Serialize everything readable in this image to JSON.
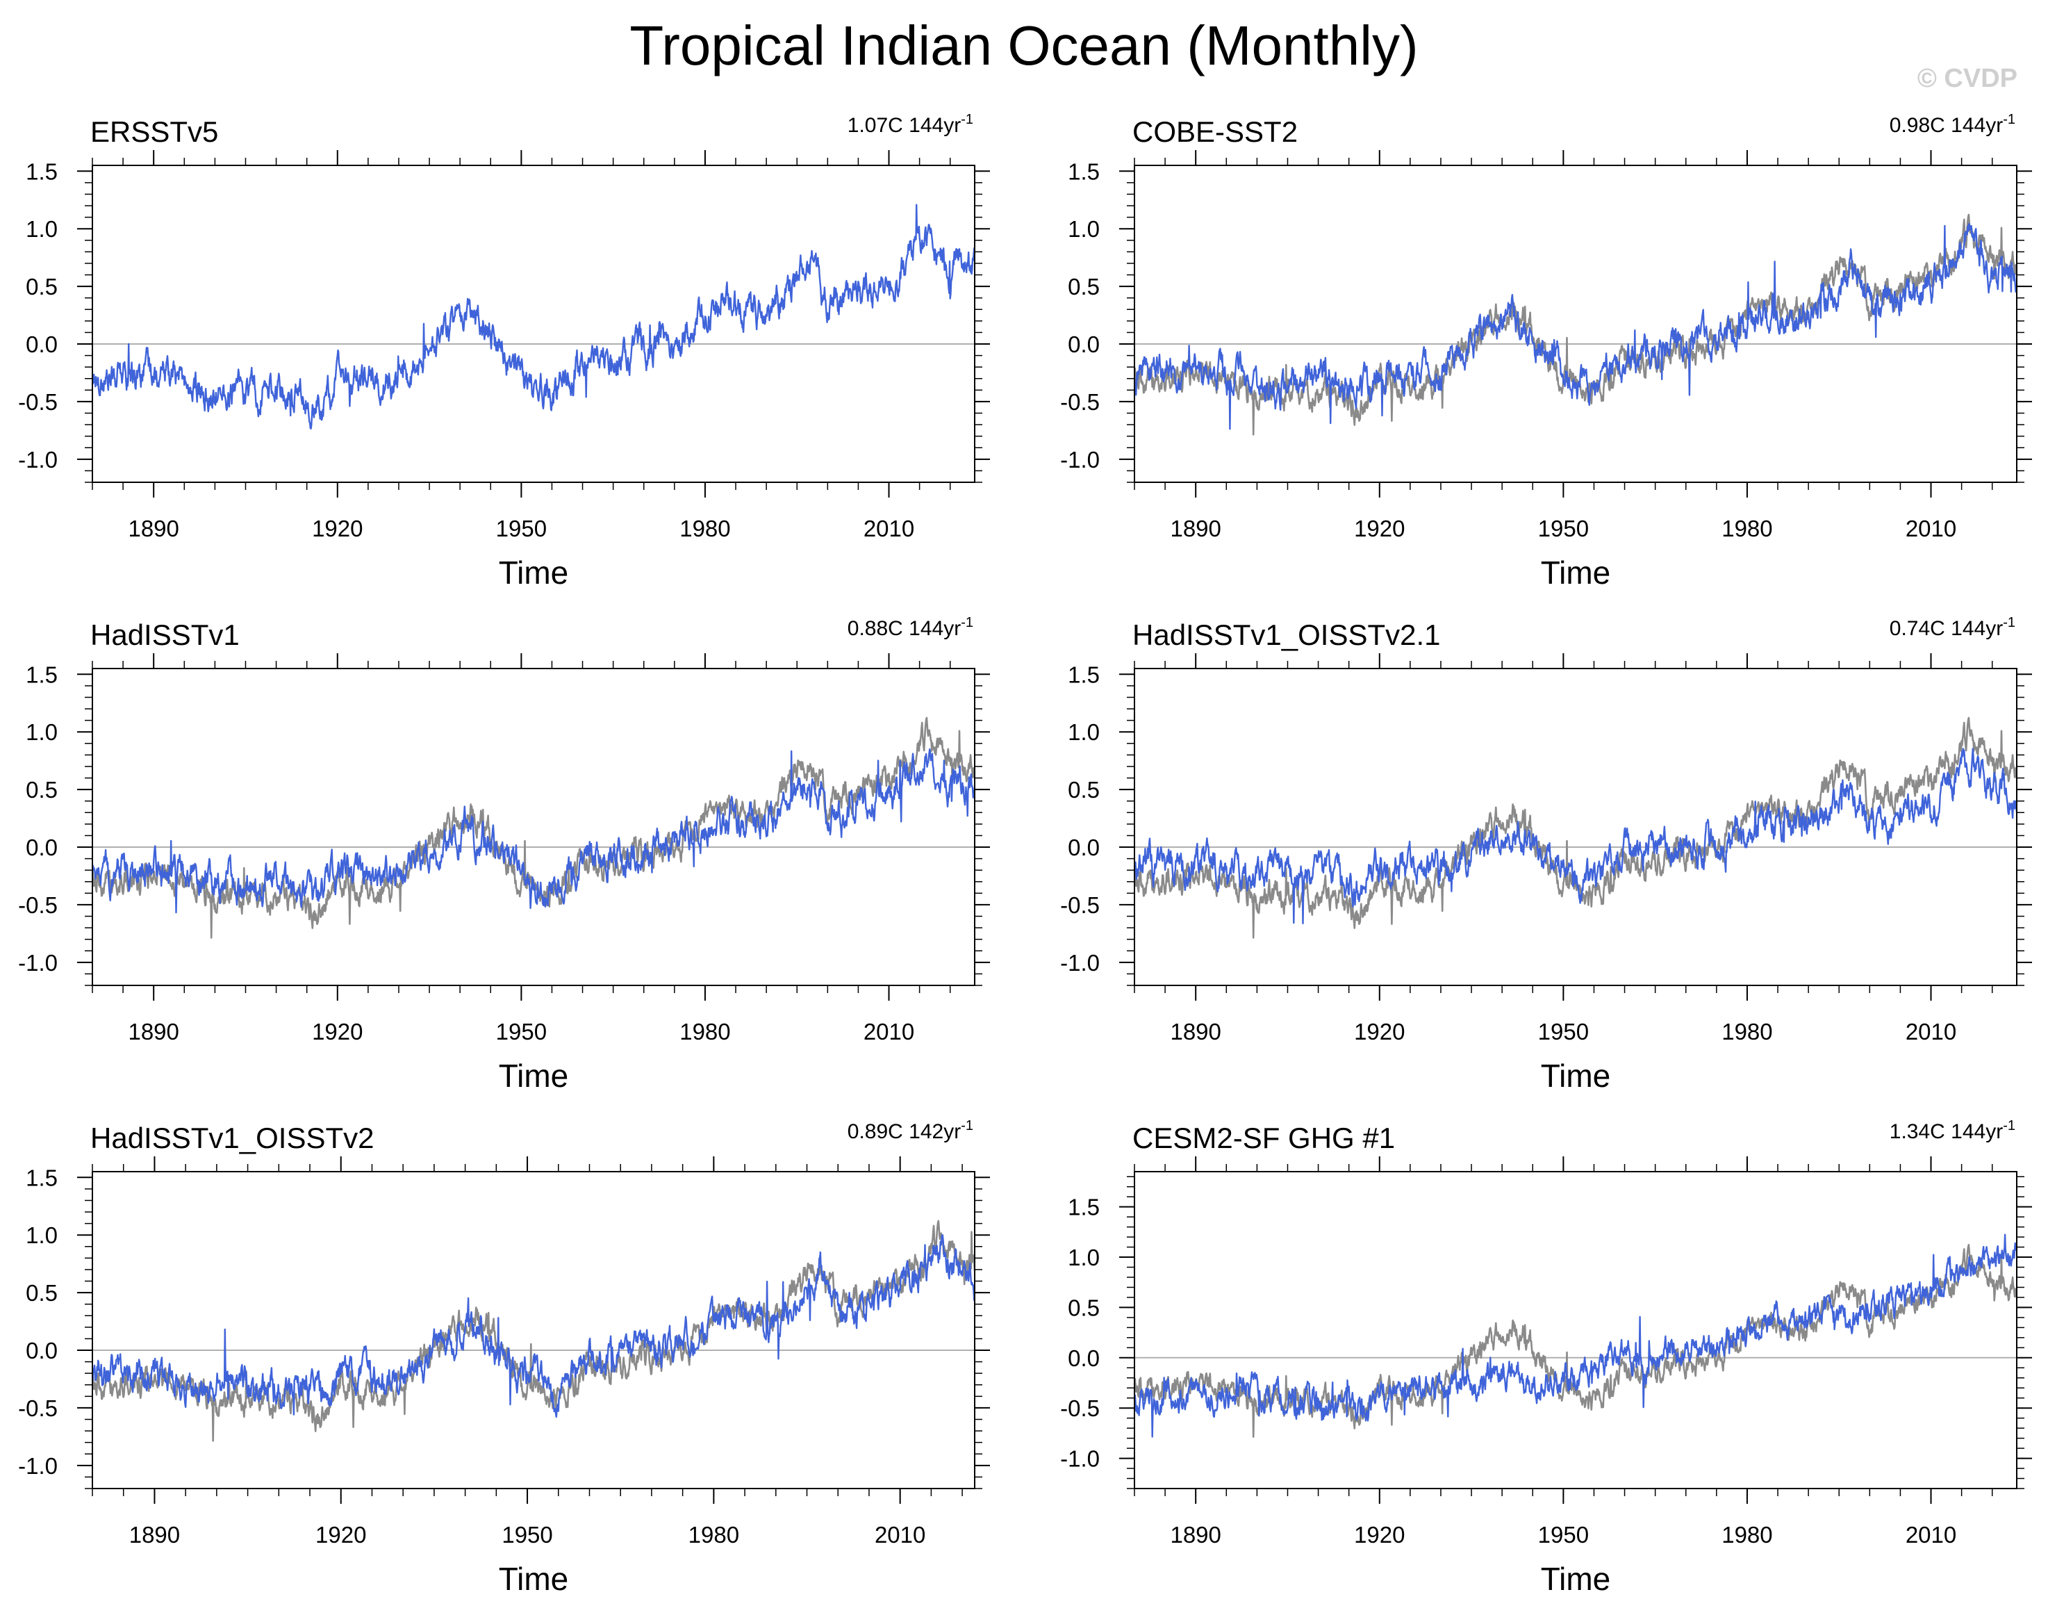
{
  "figure": {
    "title": "Tropical Indian Ocean (Monthly)",
    "copyright": "© CVDP",
    "colors": {
      "observed": "#3f63d9",
      "reference": "#8a8a8a",
      "zero_line": "#b0b0b0",
      "axis": "#000000"
    }
  },
  "chart_data": [
    {
      "type": "line",
      "title": "ERSSTv5",
      "trend_label": "1.07C 144yr",
      "trend_exponent": "-1",
      "xlabel": "Time",
      "ylabel": "",
      "xlim": [
        1880,
        2024
      ],
      "ylim": [
        -1.2,
        1.55
      ],
      "x_ticks": [
        1890,
        1920,
        1950,
        1980,
        2010
      ],
      "y_ticks": [
        -1.0,
        -0.5,
        0.0,
        0.5,
        1.0,
        1.5
      ],
      "y_tick_labels": [
        "-1.0",
        "-0.5",
        "0.0",
        "0.5",
        "1.0",
        "1.5"
      ],
      "series": [
        {
          "name": "ERSSTv5",
          "color": "#3f63d9",
          "x": [
            1880,
            1890,
            1900,
            1910,
            1917,
            1920,
            1930,
            1941,
            1945,
            1950,
            1955,
            1960,
            1970,
            1977,
            1983,
            1990,
            1997,
            2000,
            2010,
            2016,
            2020,
            2024
          ],
          "values": [
            -0.3,
            -0.25,
            -0.45,
            -0.4,
            -0.55,
            -0.3,
            -0.35,
            0.35,
            0.1,
            -0.3,
            -0.45,
            -0.15,
            -0.05,
            0.1,
            0.4,
            0.25,
            0.75,
            0.35,
            0.55,
            0.95,
            0.65,
            0.7
          ]
        }
      ]
    },
    {
      "type": "line",
      "title": "COBE-SST2",
      "trend_label": "0.98C 144yr",
      "trend_exponent": "-1",
      "xlabel": "Time",
      "ylabel": "",
      "xlim": [
        1880,
        2024
      ],
      "ylim": [
        -1.2,
        1.55
      ],
      "x_ticks": [
        1890,
        1920,
        1950,
        1980,
        2010
      ],
      "y_ticks": [
        -1.0,
        -0.5,
        0.0,
        0.5,
        1.0,
        1.5
      ],
      "y_tick_labels": [
        "-1.0",
        "-0.5",
        "0.0",
        "0.5",
        "1.0",
        "1.5"
      ],
      "series": [
        {
          "name": "ERSSTv5",
          "color": "#8a8a8a",
          "x": [
            1880,
            1890,
            1900,
            1910,
            1917,
            1920,
            1930,
            1941,
            1945,
            1950,
            1955,
            1960,
            1970,
            1977,
            1983,
            1990,
            1997,
            2000,
            2010,
            2016,
            2020,
            2024
          ],
          "values": [
            -0.3,
            -0.25,
            -0.45,
            -0.4,
            -0.55,
            -0.3,
            -0.35,
            0.35,
            0.1,
            -0.3,
            -0.45,
            -0.15,
            -0.05,
            0.1,
            0.4,
            0.25,
            0.75,
            0.35,
            0.55,
            0.95,
            0.65,
            0.7
          ]
        },
        {
          "name": "COBE-SST2",
          "color": "#3f63d9",
          "x": [
            1880,
            1890,
            1900,
            1910,
            1917,
            1920,
            1930,
            1941,
            1945,
            1950,
            1955,
            1960,
            1970,
            1977,
            1983,
            1990,
            1997,
            2000,
            2010,
            2016,
            2020,
            2024
          ],
          "values": [
            -0.25,
            -0.2,
            -0.35,
            -0.3,
            -0.4,
            -0.2,
            -0.25,
            0.3,
            0.05,
            -0.25,
            -0.35,
            -0.1,
            0.0,
            0.05,
            0.3,
            0.2,
            0.65,
            0.3,
            0.5,
            0.9,
            0.6,
            0.65
          ]
        }
      ]
    },
    {
      "type": "line",
      "title": "HadISSTv1",
      "trend_label": "0.88C 144yr",
      "trend_exponent": "-1",
      "xlabel": "Time",
      "ylabel": "",
      "xlim": [
        1880,
        2024
      ],
      "ylim": [
        -1.2,
        1.55
      ],
      "x_ticks": [
        1890,
        1920,
        1950,
        1980,
        2010
      ],
      "y_ticks": [
        -1.0,
        -0.5,
        0.0,
        0.5,
        1.0,
        1.5
      ],
      "y_tick_labels": [
        "-1.0",
        "-0.5",
        "0.0",
        "0.5",
        "1.0",
        "1.5"
      ],
      "series": [
        {
          "name": "ERSSTv5",
          "color": "#8a8a8a",
          "x": [
            1880,
            1890,
            1900,
            1910,
            1917,
            1920,
            1930,
            1941,
            1945,
            1950,
            1955,
            1960,
            1970,
            1977,
            1983,
            1990,
            1997,
            2000,
            2010,
            2016,
            2020,
            2024
          ],
          "values": [
            -0.3,
            -0.25,
            -0.45,
            -0.4,
            -0.55,
            -0.3,
            -0.35,
            0.35,
            0.1,
            -0.3,
            -0.45,
            -0.15,
            -0.05,
            0.1,
            0.4,
            0.25,
            0.75,
            0.35,
            0.55,
            0.95,
            0.65,
            0.7
          ]
        },
        {
          "name": "HadISSTv1",
          "color": "#3f63d9",
          "x": [
            1880,
            1890,
            1900,
            1910,
            1917,
            1920,
            1930,
            1941,
            1945,
            1950,
            1955,
            1960,
            1970,
            1977,
            1983,
            1990,
            1997,
            2000,
            2010,
            2016,
            2020,
            2024
          ],
          "values": [
            -0.2,
            -0.2,
            -0.3,
            -0.3,
            -0.4,
            -0.2,
            -0.25,
            0.2,
            0.0,
            -0.2,
            -0.35,
            -0.1,
            0.0,
            0.1,
            0.25,
            0.2,
            0.65,
            0.3,
            0.45,
            0.75,
            0.55,
            0.45
          ]
        }
      ]
    },
    {
      "type": "line",
      "title": "HadISSTv1_OISSTv2.1",
      "trend_label": "0.74C 144yr",
      "trend_exponent": "-1",
      "xlabel": "Time",
      "ylabel": "",
      "xlim": [
        1880,
        2024
      ],
      "ylim": [
        -1.2,
        1.55
      ],
      "x_ticks": [
        1890,
        1920,
        1950,
        1980,
        2010
      ],
      "y_ticks": [
        -1.0,
        -0.5,
        0.0,
        0.5,
        1.0,
        1.5
      ],
      "y_tick_labels": [
        "-1.0",
        "-0.5",
        "0.0",
        "0.5",
        "1.0",
        "1.5"
      ],
      "series": [
        {
          "name": "ERSSTv5",
          "color": "#8a8a8a",
          "x": [
            1880,
            1890,
            1900,
            1910,
            1917,
            1920,
            1930,
            1941,
            1945,
            1950,
            1955,
            1960,
            1970,
            1977,
            1983,
            1990,
            1997,
            2000,
            2010,
            2016,
            2020,
            2024
          ],
          "values": [
            -0.3,
            -0.25,
            -0.45,
            -0.4,
            -0.55,
            -0.3,
            -0.35,
            0.35,
            0.1,
            -0.3,
            -0.45,
            -0.15,
            -0.05,
            0.1,
            0.4,
            0.25,
            0.75,
            0.35,
            0.55,
            0.95,
            0.65,
            0.7
          ]
        },
        {
          "name": "HadISSTv1_OISSTv2.1",
          "color": "#3f63d9",
          "x": [
            1880,
            1890,
            1900,
            1910,
            1917,
            1920,
            1930,
            1941,
            1945,
            1950,
            1955,
            1960,
            1970,
            1977,
            1983,
            1990,
            1997,
            2000,
            2010,
            2016,
            2020,
            2024
          ],
          "values": [
            -0.15,
            -0.15,
            -0.25,
            -0.25,
            -0.35,
            -0.15,
            -0.2,
            0.15,
            0.0,
            -0.15,
            -0.3,
            -0.05,
            0.05,
            0.05,
            0.2,
            0.15,
            0.5,
            0.2,
            0.35,
            0.75,
            0.5,
            0.45
          ]
        }
      ]
    },
    {
      "type": "line",
      "title": "HadISSTv1_OISSTv2",
      "trend_label": "0.89C 142yr",
      "trend_exponent": "-1",
      "xlabel": "Time",
      "ylabel": "",
      "xlim": [
        1880,
        2022
      ],
      "ylim": [
        -1.2,
        1.55
      ],
      "x_ticks": [
        1890,
        1920,
        1950,
        1980,
        2010
      ],
      "y_ticks": [
        -1.0,
        -0.5,
        0.0,
        0.5,
        1.0,
        1.5
      ],
      "y_tick_labels": [
        "-1.0",
        "-0.5",
        "0.0",
        "0.5",
        "1.0",
        "1.5"
      ],
      "series": [
        {
          "name": "ERSSTv5",
          "color": "#8a8a8a",
          "x": [
            1880,
            1890,
            1900,
            1910,
            1917,
            1920,
            1930,
            1941,
            1945,
            1950,
            1955,
            1960,
            1970,
            1977,
            1983,
            1990,
            1997,
            2000,
            2010,
            2016,
            2020,
            2022
          ],
          "values": [
            -0.3,
            -0.25,
            -0.45,
            -0.4,
            -0.55,
            -0.3,
            -0.35,
            0.35,
            0.1,
            -0.3,
            -0.45,
            -0.15,
            -0.05,
            0.1,
            0.4,
            0.25,
            0.75,
            0.35,
            0.55,
            0.95,
            0.65,
            0.7
          ]
        },
        {
          "name": "HadISSTv1_OISSTv2",
          "color": "#3f63d9",
          "x": [
            1880,
            1890,
            1900,
            1910,
            1917,
            1920,
            1930,
            1941,
            1945,
            1950,
            1955,
            1960,
            1970,
            1977,
            1983,
            1990,
            1997,
            2000,
            2010,
            2016,
            2020,
            2022
          ],
          "values": [
            -0.2,
            -0.2,
            -0.3,
            -0.3,
            -0.4,
            -0.2,
            -0.25,
            0.25,
            0.0,
            -0.2,
            -0.35,
            -0.1,
            0.0,
            0.1,
            0.3,
            0.2,
            0.7,
            0.3,
            0.5,
            0.9,
            0.6,
            0.55
          ]
        }
      ]
    },
    {
      "type": "line",
      "title": "CESM2-SF GHG #1",
      "trend_label": "1.34C 144yr",
      "trend_exponent": "-1",
      "xlabel": "Time",
      "ylabel": "",
      "xlim": [
        1880,
        2024
      ],
      "ylim": [
        -1.3,
        1.85
      ],
      "x_ticks": [
        1890,
        1920,
        1950,
        1980,
        2010
      ],
      "y_ticks": [
        -1.0,
        -0.5,
        0.0,
        0.5,
        1.0,
        1.5
      ],
      "y_tick_labels": [
        "-1.0",
        "-0.5",
        "0.0",
        "0.5",
        "1.0",
        "1.5"
      ],
      "series": [
        {
          "name": "ERSSTv5",
          "color": "#8a8a8a",
          "x": [
            1880,
            1890,
            1900,
            1910,
            1917,
            1920,
            1930,
            1941,
            1945,
            1950,
            1955,
            1960,
            1970,
            1977,
            1983,
            1990,
            1997,
            2000,
            2010,
            2016,
            2020,
            2024
          ],
          "values": [
            -0.3,
            -0.25,
            -0.45,
            -0.4,
            -0.55,
            -0.3,
            -0.35,
            0.35,
            0.1,
            -0.3,
            -0.45,
            -0.15,
            -0.05,
            0.1,
            0.4,
            0.25,
            0.75,
            0.35,
            0.55,
            0.95,
            0.65,
            0.7
          ]
        },
        {
          "name": "CESM2-SF GHG #1",
          "color": "#3f63d9",
          "x": [
            1880,
            1890,
            1900,
            1910,
            1917,
            1920,
            1930,
            1941,
            1945,
            1950,
            1955,
            1960,
            1970,
            1977,
            1983,
            1990,
            1997,
            2000,
            2010,
            2016,
            2020,
            2024
          ],
          "values": [
            -0.45,
            -0.4,
            -0.35,
            -0.45,
            -0.5,
            -0.35,
            -0.3,
            -0.15,
            -0.3,
            -0.2,
            -0.1,
            0.0,
            0.1,
            0.2,
            0.35,
            0.4,
            0.45,
            0.5,
            0.65,
            0.85,
            0.95,
            1.1
          ]
        }
      ]
    }
  ]
}
